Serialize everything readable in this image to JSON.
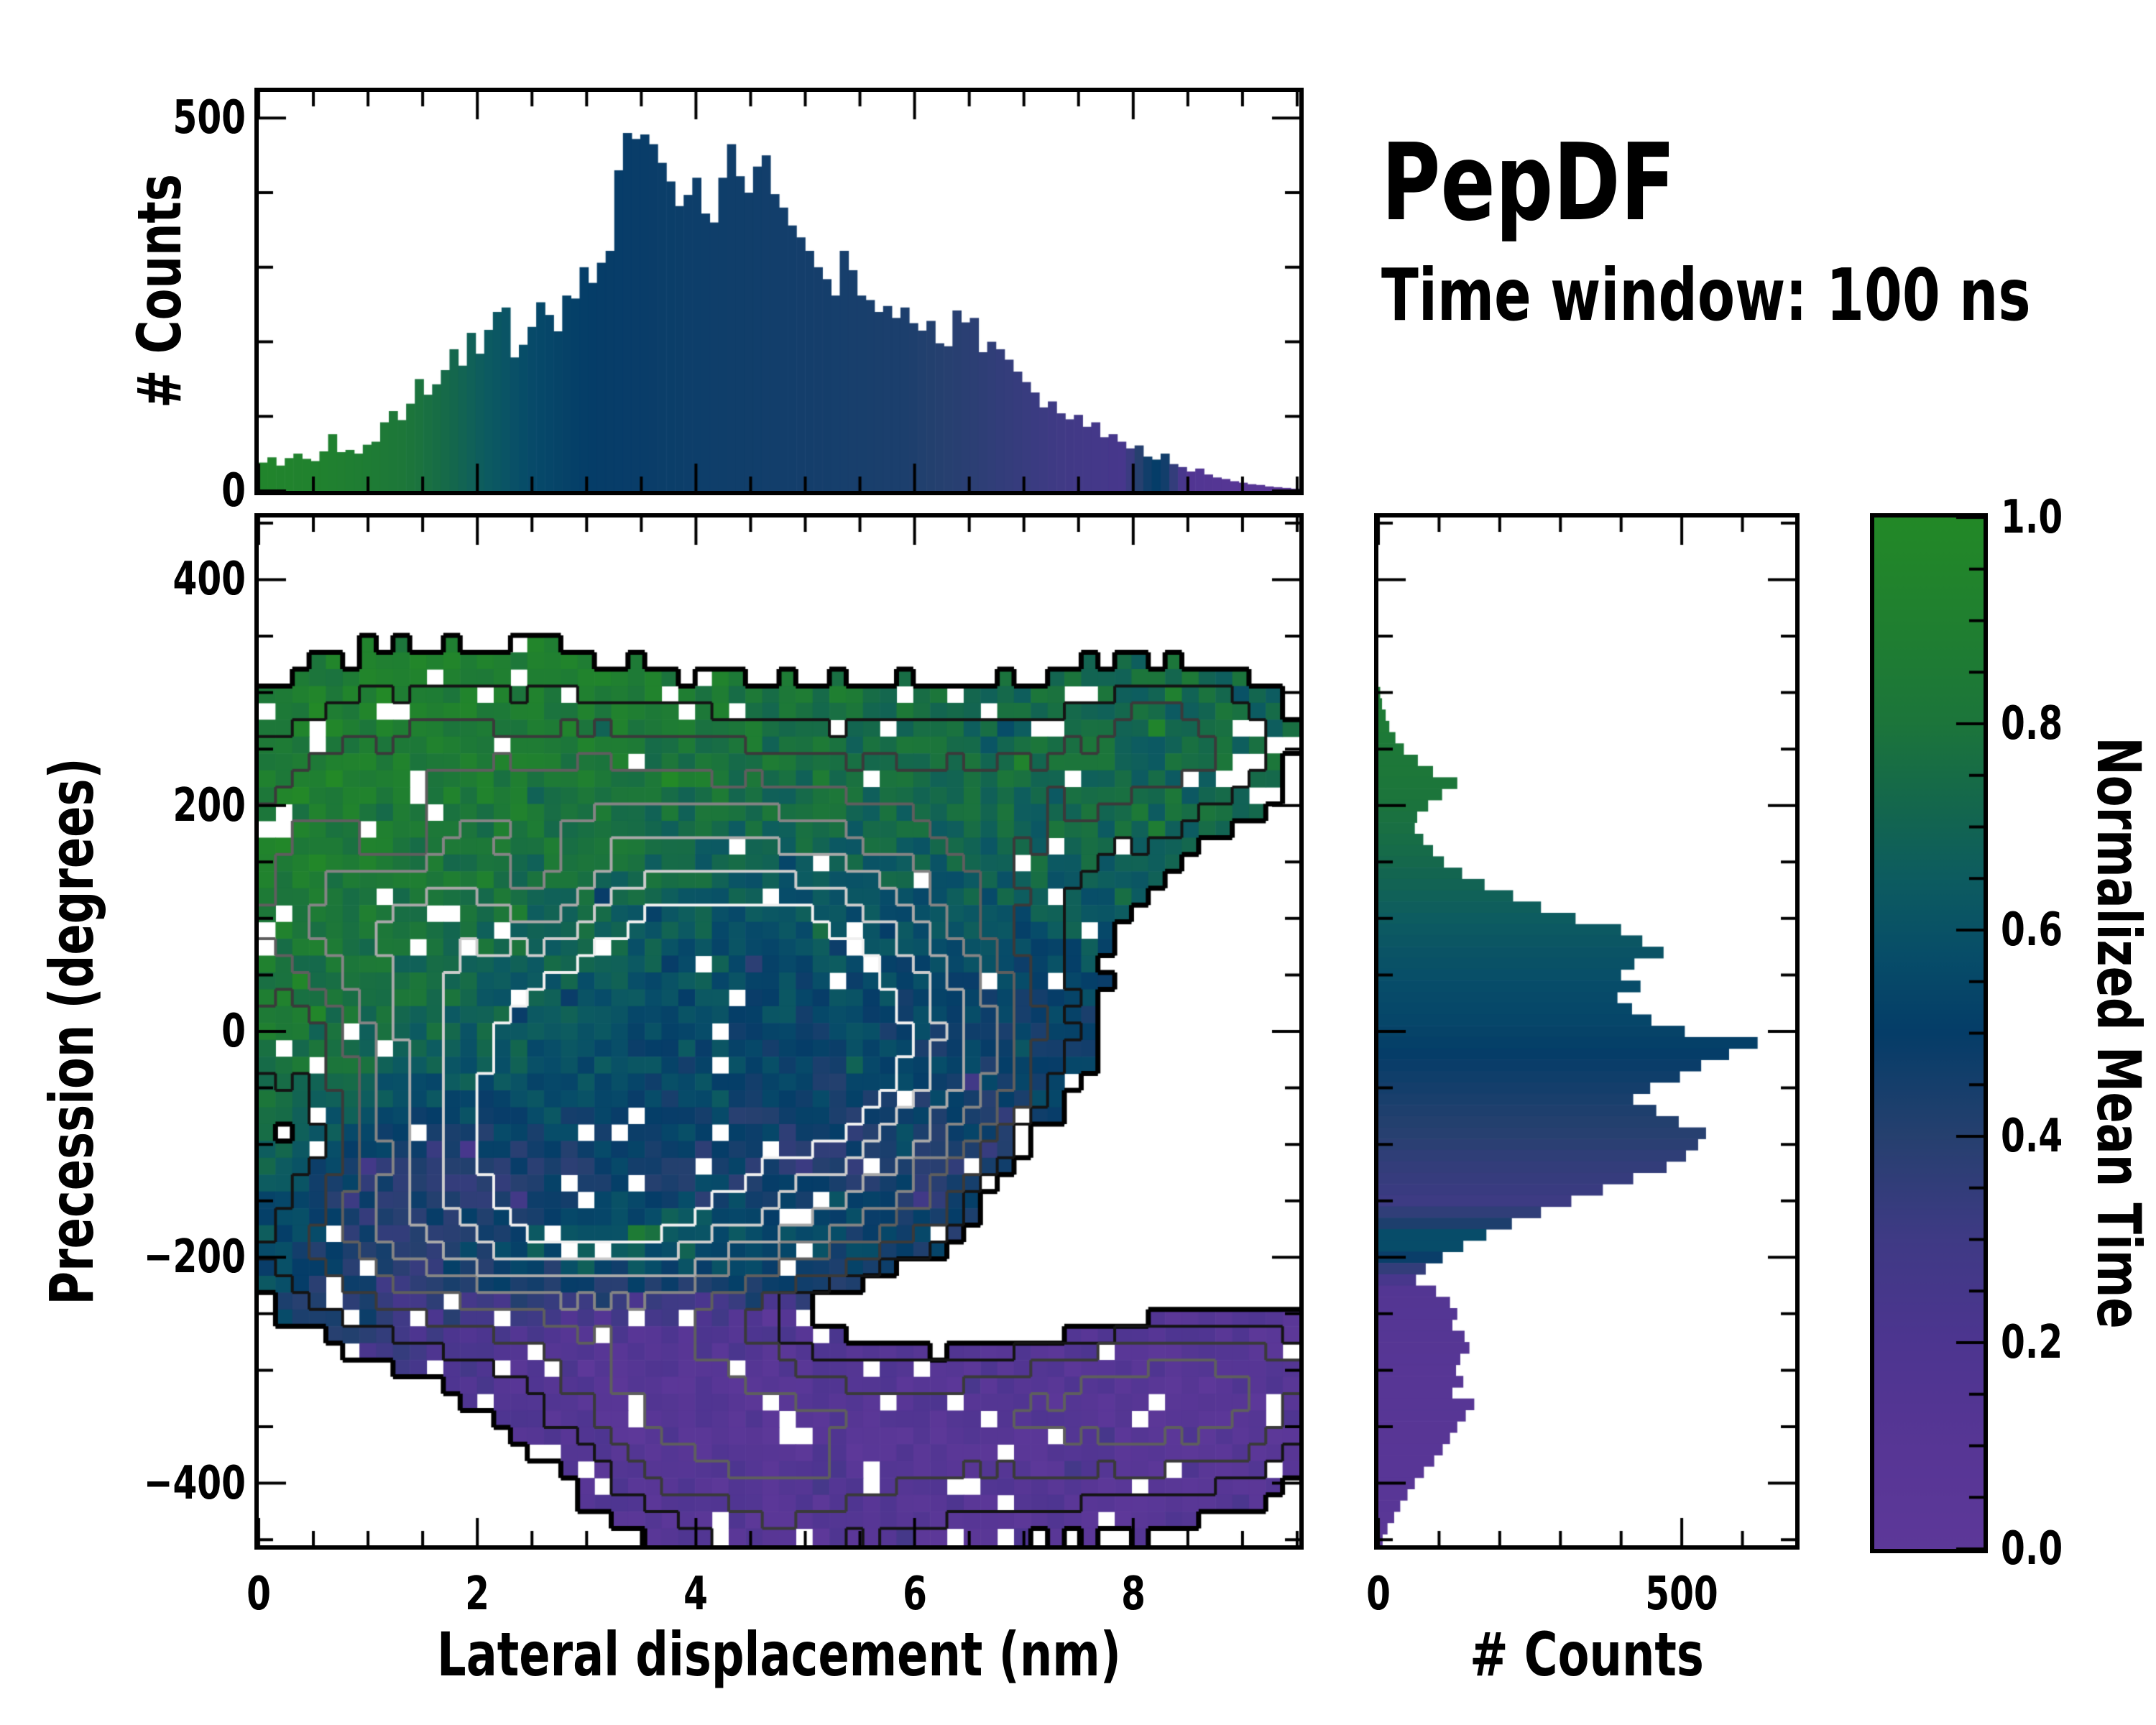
{
  "figure": {
    "title": "PepDF",
    "subtitle": "Time window: 100 ns",
    "background": "#ffffff",
    "text_color": "#000000",
    "axis_color": "#000000"
  },
  "colormap": {
    "name": "green-blue-purple",
    "stops": [
      [
        0.0,
        "#5d3899"
      ],
      [
        0.1,
        "#573695"
      ],
      [
        0.2,
        "#4d3590"
      ],
      [
        0.3,
        "#3f3a85"
      ],
      [
        0.4,
        "#26406f"
      ],
      [
        0.5,
        "#053d68"
      ],
      [
        0.57,
        "#074c69"
      ],
      [
        0.65,
        "#0d5c60"
      ],
      [
        0.72,
        "#14674d"
      ],
      [
        0.8,
        "#1c753b"
      ],
      [
        0.9,
        "#208030"
      ],
      [
        1.0,
        "#238927"
      ]
    ]
  },
  "chart_data": [
    {
      "id": "top-histogram",
      "type": "bar",
      "ylabel": "# Counts",
      "xlim": [
        0,
        9.52
      ],
      "ylim": [
        0,
        535
      ],
      "bin_width": 0.0793,
      "yticks_major": [
        0,
        500
      ],
      "ytick_labels": [
        "0",
        "500"
      ],
      "ytick_minor_step": 100,
      "xticks_major": [
        0,
        2,
        4,
        6,
        8
      ],
      "xtick_minor_step": 0.5,
      "values": [
        38,
        45,
        34,
        44,
        50,
        43,
        40,
        53,
        76,
        52,
        55,
        50,
        62,
        66,
        92,
        107,
        95,
        117,
        150,
        129,
        143,
        162,
        190,
        168,
        212,
        184,
        216,
        240,
        246,
        179,
        196,
        220,
        253,
        236,
        214,
        262,
        258,
        300,
        279,
        306,
        322,
        430,
        480,
        472,
        478,
        465,
        440,
        415,
        382,
        397,
        420,
        372,
        360,
        420,
        465,
        422,
        400,
        435,
        450,
        398,
        380,
        356,
        340,
        322,
        300,
        284,
        262,
        322,
        296,
        262,
        256,
        240,
        248,
        232,
        246,
        225,
        215,
        228,
        198,
        194,
        242,
        226,
        232,
        186,
        200,
        190,
        176,
        160,
        146,
        132,
        112,
        120,
        104,
        96,
        102,
        86,
        92,
        72,
        76,
        66,
        57,
        61,
        46,
        42,
        50,
        36,
        32,
        26,
        30,
        22,
        18,
        16,
        13,
        11,
        9,
        8,
        6,
        5,
        4,
        3
      ],
      "color_value_stops": [
        [
          0,
          0.95
        ],
        [
          0.7,
          0.9
        ],
        [
          1.3,
          0.82
        ],
        [
          1.7,
          0.74
        ],
        [
          2.1,
          0.64
        ],
        [
          2.5,
          0.56
        ],
        [
          3.0,
          0.5
        ],
        [
          4.2,
          0.47
        ],
        [
          5.2,
          0.45
        ],
        [
          5.9,
          0.43
        ],
        [
          6.4,
          0.39
        ],
        [
          6.9,
          0.34
        ],
        [
          7.4,
          0.29
        ],
        [
          7.9,
          0.24
        ],
        [
          8.1,
          0.45
        ],
        [
          8.25,
          0.52
        ],
        [
          8.5,
          0.16
        ],
        [
          8.9,
          0.11
        ],
        [
          9.52,
          0.05
        ]
      ]
    },
    {
      "id": "main-heatmap",
      "type": "heatmap",
      "xlabel": "Lateral displacement (nm)",
      "ylabel": "Precession (degrees)",
      "xlim": [
        0,
        9.52
      ],
      "ylim": [
        -455,
        455
      ],
      "xticks_major": [
        0,
        2,
        4,
        6,
        8
      ],
      "xtick_labels": [
        "0",
        "2",
        "4",
        "6",
        "8"
      ],
      "xtick_minor_step": 0.5,
      "yticks_major": [
        400,
        200,
        0,
        -200,
        -400
      ],
      "ytick_labels": [
        "400",
        "200",
        "0",
        "−200",
        "−400"
      ],
      "ytick_minor_step": 50,
      "grid": [
        62,
        61
      ],
      "seed": 11,
      "value_noise": 0.09,
      "hole_probability_base": 0.05,
      "hole_probability_lowdensity": 0.06,
      "value_blobs": [
        {
          "v": 0.88,
          "cx": 1.6,
          "cy": 150,
          "sx": 2.6,
          "sy": 170,
          "w": 1.6
        },
        {
          "v": 0.9,
          "cx": 4.0,
          "cy": -185,
          "sx": 1.6,
          "sy": 28,
          "w": 2.2
        },
        {
          "v": 0.72,
          "cx": 7.3,
          "cy": 215,
          "sx": 1.5,
          "sy": 75,
          "w": 1.8
        },
        {
          "v": 0.48,
          "cx": 4.3,
          "cy": -10,
          "sx": 1.9,
          "sy": 110,
          "w": 2.2
        },
        {
          "v": 0.5,
          "cx": 6.3,
          "cy": -60,
          "sx": 1.2,
          "sy": 90,
          "w": 1.5
        },
        {
          "v": 0.35,
          "cx": 4.2,
          "cy": -120,
          "sx": 1.6,
          "sy": 60,
          "w": 1.2
        },
        {
          "v": 0.1,
          "cx": 6.3,
          "cy": -340,
          "sx": 2.2,
          "sy": 90,
          "w": 2.5
        },
        {
          "v": 0.12,
          "cx": 3.6,
          "cy": -300,
          "sx": 0.9,
          "sy": 60,
          "w": 1.8
        },
        {
          "v": 0.15,
          "cx": 1.7,
          "cy": -165,
          "sx": 0.8,
          "sy": 55,
          "w": 1.4
        },
        {
          "v": 0.25,
          "cx": 5.6,
          "cy": -150,
          "sx": 0.9,
          "sy": 50,
          "w": 1.0
        }
      ],
      "density_blobs": [
        {
          "cx": 3.1,
          "cy": -95,
          "sx": 0.75,
          "sy": 70,
          "a": 1.0
        },
        {
          "cx": 4.4,
          "cy": -10,
          "sx": 0.9,
          "sy": 85,
          "a": 0.8
        },
        {
          "cx": 3.3,
          "cy": -45,
          "sx": 1.7,
          "sy": 130,
          "a": 0.75
        },
        {
          "cx": 5.3,
          "cy": 35,
          "sx": 1.1,
          "sy": 80,
          "a": 0.55
        },
        {
          "cx": 5.9,
          "cy": -60,
          "sx": 1.0,
          "sy": 80,
          "a": 0.5
        },
        {
          "cx": 2.1,
          "cy": 120,
          "sx": 2.0,
          "sy": 120,
          "a": 0.42
        },
        {
          "cx": 1.1,
          "cy": 30,
          "sx": 1.2,
          "sy": 180,
          "a": 0.3
        },
        {
          "cx": 4.3,
          "cy": 150,
          "sx": 1.6,
          "sy": 90,
          "a": 0.3
        },
        {
          "cx": 7.2,
          "cy": 215,
          "sx": 1.3,
          "sy": 70,
          "a": 0.28
        },
        {
          "cx": 8.5,
          "cy": 265,
          "sx": 0.7,
          "sy": 45,
          "a": 0.26
        },
        {
          "cx": 4.1,
          "cy": -185,
          "sx": 1.7,
          "sy": 45,
          "a": 0.35
        },
        {
          "cx": 1.7,
          "cy": -170,
          "sx": 0.9,
          "sy": 60,
          "a": 0.3
        },
        {
          "cx": 6.3,
          "cy": -340,
          "sx": 1.9,
          "sy": 85,
          "a": 0.32
        },
        {
          "cx": 3.7,
          "cy": -300,
          "sx": 0.8,
          "sy": 55,
          "a": 0.3
        },
        {
          "cx": 8.0,
          "cy": -320,
          "sx": 1.1,
          "sy": 60,
          "a": 0.28
        },
        {
          "cx": 8.9,
          "cy": -310,
          "sx": 0.8,
          "sy": 55,
          "a": 0.22
        },
        {
          "cx": 4.6,
          "cy": -390,
          "sx": 0.9,
          "sy": 55,
          "a": 0.28
        },
        {
          "cx": 2.6,
          "cy": 128,
          "sx": 0.42,
          "sy": 40,
          "a": -0.38
        },
        {
          "cx": 1.3,
          "cy": 172,
          "sx": 0.3,
          "sy": 32,
          "a": -0.3
        },
        {
          "cx": 6.0,
          "cy": -240,
          "sx": 1.6,
          "sy": 40,
          "a": -0.4
        },
        {
          "cx": 7.6,
          "cy": -150,
          "sx": 1.0,
          "sy": 60,
          "a": -0.35
        },
        {
          "cx": 0.5,
          "cy": -95,
          "sx": 0.5,
          "sy": 45,
          "a": -0.3
        },
        {
          "cx": 0.55,
          "cy": 5,
          "sx": 0.45,
          "sy": 40,
          "a": -0.28
        }
      ],
      "contours": {
        "levels": [
          0.14,
          0.24,
          0.36,
          0.5,
          0.66,
          0.84,
          1.05,
          1.3
        ],
        "colors": [
          "#000000",
          "#141414",
          "#3a3a3a",
          "#5e5e5e",
          "#848484",
          "#a8a8a8",
          "#cccccc",
          "#f0f0f0"
        ],
        "widths": [
          7,
          4,
          4,
          4,
          4,
          4,
          4,
          4
        ]
      }
    },
    {
      "id": "right-histogram",
      "type": "bar",
      "orientation": "horizontal",
      "xlabel": "# Counts",
      "xlim": [
        0,
        687
      ],
      "ylim": [
        -455,
        455
      ],
      "bin_width_deg": 10,
      "xticks_major": [
        0,
        500
      ],
      "xtick_labels": [
        "0",
        "500"
      ],
      "xtick_minor_step": 100,
      "ytick_minor_step": 50,
      "yticks_major": [
        400,
        200,
        0,
        -200,
        -400
      ],
      "values_top_to_bottom": [
        0,
        0,
        0,
        0,
        0,
        0,
        0,
        0,
        0,
        0,
        0,
        0,
        0,
        0,
        0,
        3,
        6,
        12,
        18,
        28,
        42,
        65,
        90,
        130,
        105,
        82,
        64,
        60,
        74,
        90,
        108,
        138,
        175,
        222,
        268,
        325,
        400,
        435,
        470,
        422,
        400,
        432,
        394,
        418,
        450,
        505,
        625,
        578,
        532,
        497,
        448,
        420,
        458,
        495,
        540,
        527,
        507,
        475,
        420,
        370,
        318,
        268,
        220,
        178,
        140,
        106,
        78,
        62,
        95,
        118,
        130,
        122,
        142,
        150,
        135,
        128,
        140,
        122,
        158,
        144,
        130,
        118,
        106,
        92,
        75,
        60,
        48,
        36,
        26,
        15,
        7
      ],
      "color_value_stops": [
        [
          455,
          0.86
        ],
        [
          300,
          0.86
        ],
        [
          250,
          0.83
        ],
        [
          200,
          0.79
        ],
        [
          160,
          0.74
        ],
        [
          120,
          0.68
        ],
        [
          80,
          0.62
        ],
        [
          40,
          0.57
        ],
        [
          0,
          0.53
        ],
        [
          -40,
          0.47
        ],
        [
          -80,
          0.41
        ],
        [
          -120,
          0.35
        ],
        [
          -150,
          0.31
        ],
        [
          -168,
          0.4
        ],
        [
          -182,
          0.6
        ],
        [
          -195,
          0.55
        ],
        [
          -210,
          0.35
        ],
        [
          -228,
          0.14
        ],
        [
          -300,
          0.1
        ],
        [
          -455,
          0.07
        ]
      ]
    },
    {
      "id": "colorbar",
      "type": "colorbar",
      "label": "Normalized Mean Time",
      "range": [
        0.0,
        1.0
      ],
      "ticks_major": [
        0.0,
        0.2,
        0.4,
        0.6,
        0.8,
        1.0
      ],
      "tick_labels": [
        "0.0",
        "0.2",
        "0.4",
        "0.6",
        "0.8",
        "1.0"
      ],
      "tick_minor_step": 0.05
    }
  ]
}
